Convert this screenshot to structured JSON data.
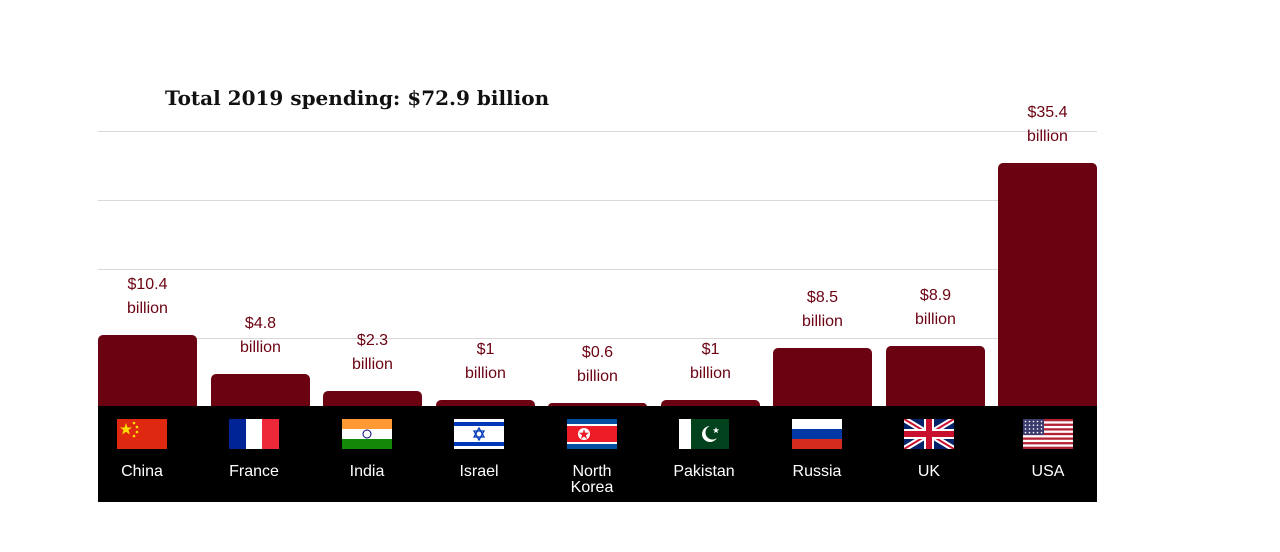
{
  "chart_data": {
    "type": "bar",
    "title": "Total 2019 spending: $72.9 billion",
    "categories": [
      "China",
      "France",
      "India",
      "Israel",
      "North Korea",
      "Pakistan",
      "Russia",
      "UK",
      "USA"
    ],
    "values": [
      10.4,
      4.8,
      2.3,
      1,
      0.6,
      1,
      8.5,
      8.9,
      35.4
    ],
    "value_labels": [
      [
        "$10.4",
        "billion"
      ],
      [
        "$4.8",
        "billion"
      ],
      [
        "$2.3",
        "billion"
      ],
      [
        "$1",
        "billion"
      ],
      [
        "$0.6",
        "billion"
      ],
      [
        "$1",
        "billion"
      ],
      [
        "$8.5",
        "billion"
      ],
      [
        "$8.9",
        "billion"
      ],
      [
        "$35.4",
        "billion"
      ]
    ],
    "category_labels": [
      "China",
      "France",
      "India",
      "Israel",
      "North\nKorea",
      "Pakistan",
      "Russia",
      "UK",
      "USA"
    ],
    "flag_icons": [
      "china-flag-icon",
      "france-flag-icon",
      "india-flag-icon",
      "israel-flag-icon",
      "north-korea-flag-icon",
      "pakistan-flag-icon",
      "russia-flag-icon",
      "uk-flag-icon",
      "usa-flag-icon"
    ],
    "ylim": [
      0,
      40
    ],
    "grid": true,
    "xlabel": "",
    "ylabel": "",
    "colors": {
      "bar": "#6b0212",
      "label": "#6b0212",
      "band": "#000000",
      "grid": "#d8d8d8"
    }
  }
}
